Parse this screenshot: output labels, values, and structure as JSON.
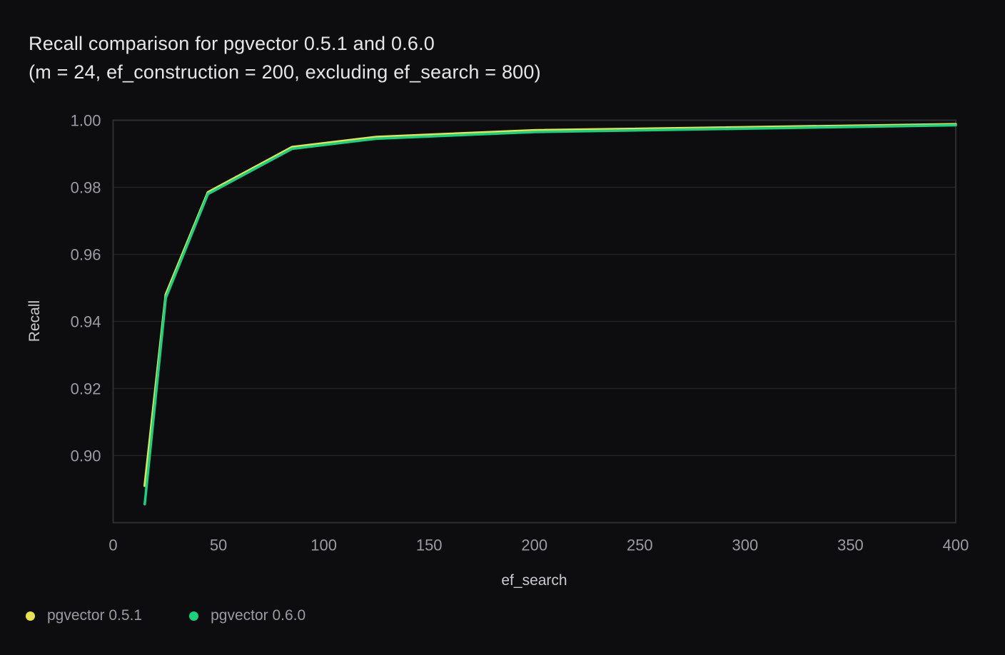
{
  "title": "Recall comparison for pgvector 0.5.1 and 0.6.0",
  "subtitle": "(m = 24, ef_construction = 200, excluding ef_search = 800)",
  "colors": {
    "background": "#0d0d0f",
    "gridline": "#232327",
    "plot_border": "#2e2e32",
    "tick_text": "#9b9ba1",
    "axis_title_text": "#c9c9ce",
    "title_text": "#e6e6e9",
    "series_pgvector_051": "#e8e34d",
    "series_pgvector_060": "#15d381"
  },
  "chart_data": {
    "type": "line",
    "x": [
      15,
      25,
      45,
      85,
      125,
      200,
      400
    ],
    "series": [
      {
        "name": "pgvector 0.5.1",
        "color": "#e8e34d",
        "values": [
          0.891,
          0.948,
          0.9785,
          0.992,
          0.995,
          0.997,
          0.9988
        ]
      },
      {
        "name": "pgvector 0.6.0",
        "color": "#15d381",
        "values": [
          0.8855,
          0.947,
          0.978,
          0.9915,
          0.9945,
          0.9965,
          0.9985
        ]
      }
    ],
    "xlabel": "ef_search",
    "ylabel": "Recall",
    "xlim": [
      0,
      400
    ],
    "ylim": [
      0.88,
      1.0
    ],
    "x_ticks": [
      0,
      50,
      100,
      150,
      200,
      250,
      300,
      350,
      400
    ],
    "y_ticks": [
      0.9,
      0.92,
      0.94,
      0.96,
      0.98,
      1.0
    ],
    "grid": "horizontal-only",
    "legend_position": "bottom-left"
  }
}
